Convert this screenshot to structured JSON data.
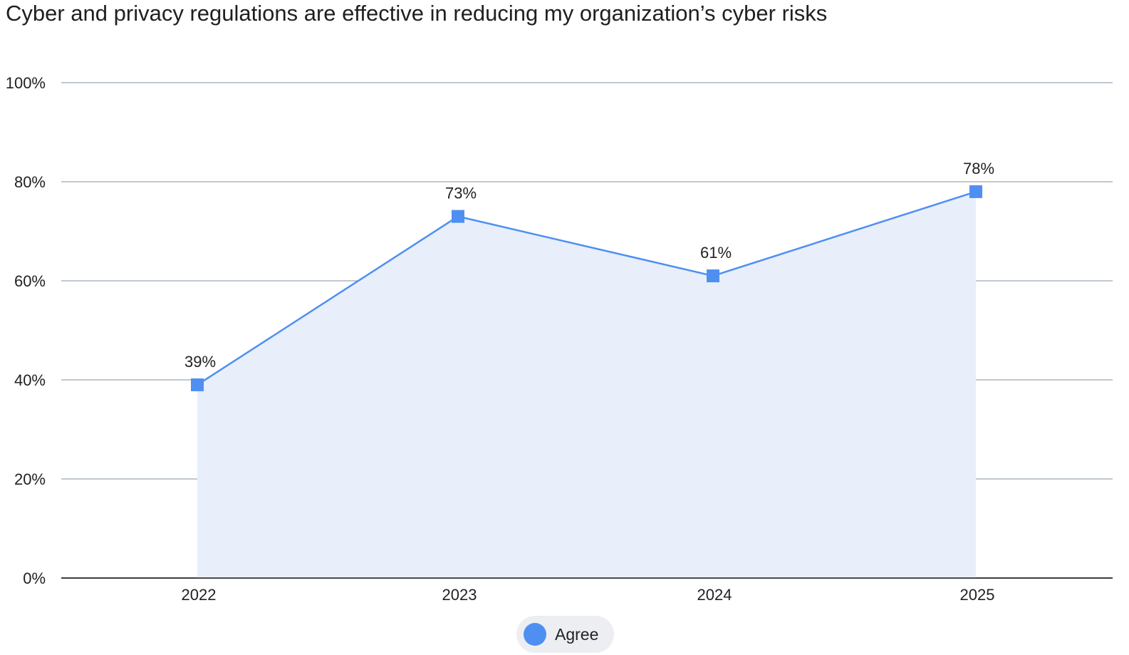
{
  "chart_data": {
    "type": "area",
    "title": "Cyber and privacy regulations are effective in reducing my organization’s cyber risks",
    "categories": [
      "2022",
      "2023",
      "2024",
      "2025"
    ],
    "series": [
      {
        "name": "Agree",
        "values": [
          39,
          73,
          61,
          78
        ],
        "labels": [
          "39%",
          "73%",
          "61%",
          "78%"
        ]
      }
    ],
    "ylim": [
      0,
      100
    ],
    "yticks": [
      0,
      20,
      40,
      60,
      80,
      100
    ],
    "ytick_labels": [
      "0%",
      "20%",
      "40%",
      "60%",
      "80%",
      "100%"
    ],
    "xlabel": "",
    "ylabel": "",
    "grid": true,
    "legend": "bottom-center",
    "colors": {
      "line": "#4f8ff2",
      "marker": "#4f8ff2",
      "fill": "#e8effb",
      "grid": "#9aa6b4",
      "axis": "#222222"
    }
  }
}
